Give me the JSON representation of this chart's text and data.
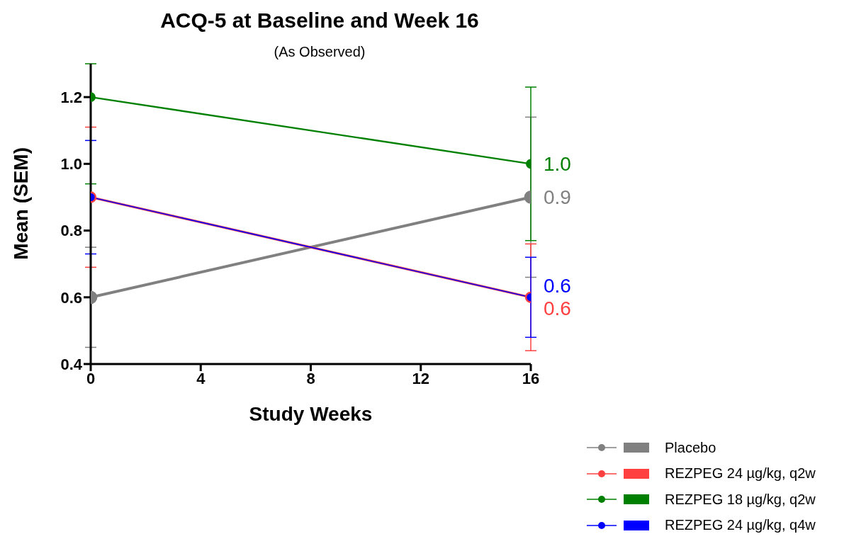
{
  "chart_data": {
    "type": "line",
    "title": "ACQ-5 at Baseline and Week 16",
    "subtitle": "(As Observed)",
    "xlabel": "Study Weeks",
    "ylabel": "Mean (SEM)",
    "x": [
      0,
      16
    ],
    "xlim": [
      0,
      16
    ],
    "xticks": [
      0,
      4,
      8,
      12,
      16
    ],
    "ylim": [
      0.4,
      1.3
    ],
    "yticks": [
      0.4,
      0.6,
      0.8,
      {
        "value": 1,
        "label": "1.0"
      },
      1.2
    ],
    "grid": false,
    "legend": "bottom right",
    "marker": "circle",
    "line_style": "solid",
    "series": [
      {
        "name": "Placebo",
        "color": "#808080",
        "values": [
          0.6,
          0.9
        ],
        "errors": [
          [
            0.45,
            0.75
          ],
          [
            0.66,
            1.14
          ]
        ],
        "value_labels": [
          null,
          "0.9"
        ]
      },
      {
        "name": "REZPEG 24 µg/kg, q2w",
        "color": "#ff4040",
        "values": [
          0.9,
          0.6
        ],
        "errors": [
          [
            0.69,
            1.11
          ],
          [
            0.44,
            0.76
          ]
        ],
        "value_labels": [
          null,
          "0.6"
        ]
      },
      {
        "name": "REZPEG 18 µg/kg, q2w",
        "color": "#008000",
        "values": [
          1.2,
          1.0
        ],
        "errors": [
          [
            0.94,
            1.3
          ],
          [
            0.77,
            1.23
          ]
        ],
        "value_labels": [
          null,
          "1.0"
        ]
      },
      {
        "name": "REZPEG 24 µg/kg, q4w",
        "color": "#0000ff",
        "values": [
          0.9,
          0.6
        ],
        "errors": [
          [
            0.73,
            1.07
          ],
          [
            0.48,
            0.72
          ]
        ],
        "value_labels": [
          null,
          "0.6"
        ]
      }
    ]
  }
}
